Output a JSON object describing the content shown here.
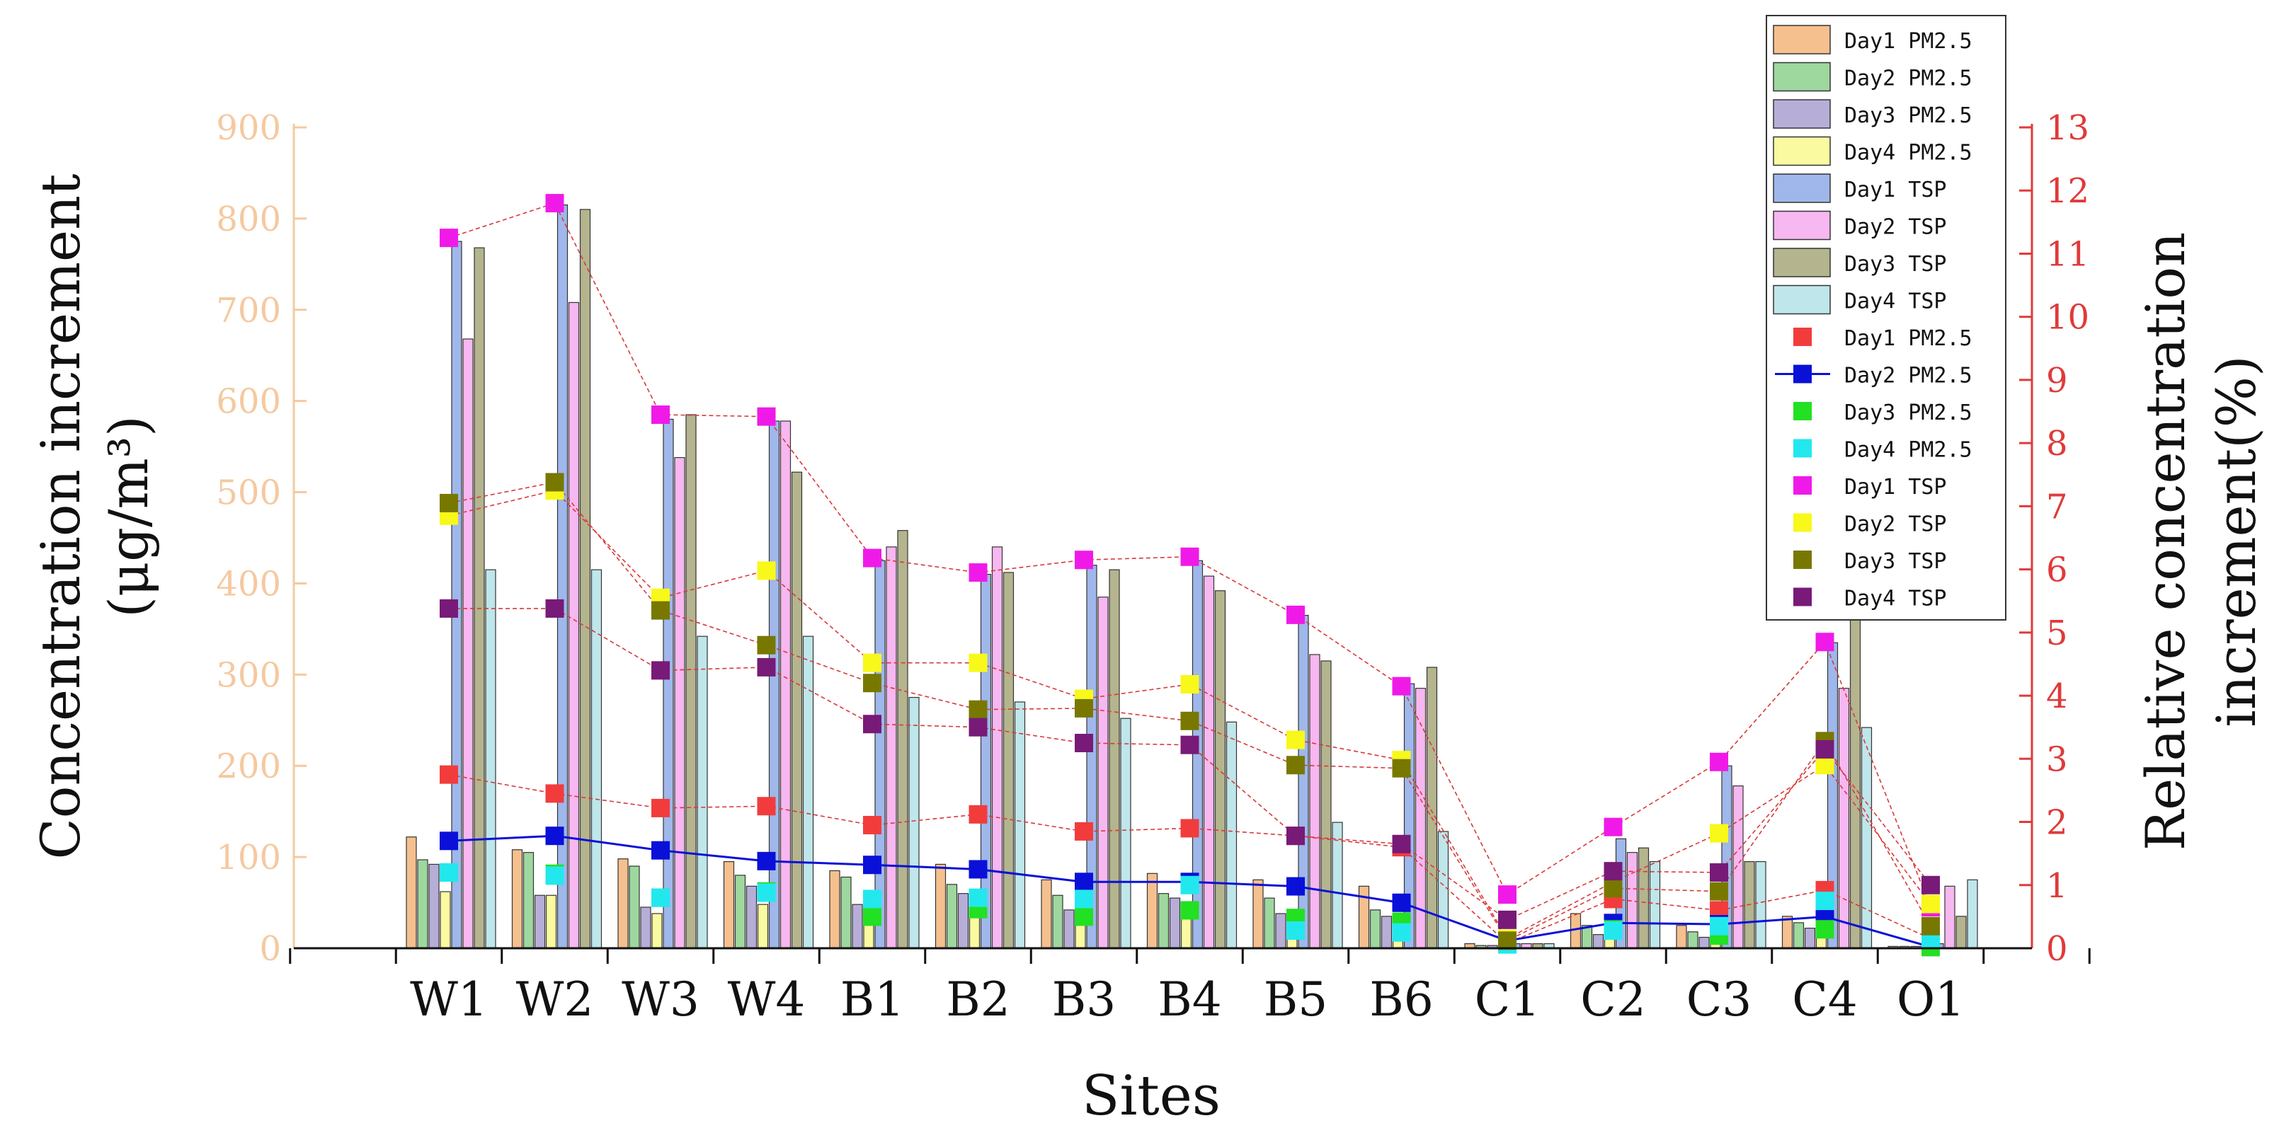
{
  "chart_data": {
    "type": "bar",
    "title": "",
    "xlabel": "Sites",
    "ylabel_left_line1": "Concentration increment",
    "ylabel_left_line2": "(μg/m³)",
    "ylabel_right_line1": "Relative concentration",
    "ylabel_right_line2": "increment(%)",
    "categories": [
      "W1",
      "W2",
      "W3",
      "W4",
      "B1",
      "B2",
      "B3",
      "B4",
      "B5",
      "B6",
      "C1",
      "C2",
      "C3",
      "C4",
      "O1"
    ],
    "ylim_left": [
      0,
      900
    ],
    "yticks_left": [
      0,
      100,
      200,
      300,
      400,
      500,
      600,
      700,
      800,
      900
    ],
    "ylim_right": [
      0,
      13
    ],
    "yticks_right": [
      0,
      1,
      2,
      3,
      4,
      5,
      6,
      7,
      8,
      9,
      10,
      11,
      12,
      13
    ],
    "legend_position": "top-right",
    "bar_series": [
      {
        "name": "Day1  PM2.5",
        "color": "#f5c08e",
        "values": [
          122,
          108,
          98,
          95,
          85,
          92,
          75,
          82,
          75,
          68,
          5,
          38,
          25,
          35,
          2
        ]
      },
      {
        "name": "Day2  PM2.5",
        "color": "#9ed89e",
        "values": [
          97,
          105,
          90,
          80,
          78,
          70,
          58,
          60,
          55,
          42,
          3,
          25,
          18,
          28,
          2
        ]
      },
      {
        "name": "Day3  PM2.5",
        "color": "#b7aed8",
        "values": [
          92,
          58,
          45,
          68,
          48,
          60,
          42,
          55,
          38,
          35,
          3,
          15,
          12,
          22,
          2
        ]
      },
      {
        "name": "Day4  PM2.5",
        "color": "#fafaa0",
        "values": [
          62,
          58,
          38,
          48,
          38,
          38,
          32,
          40,
          30,
          32,
          2,
          12,
          10,
          20,
          2
        ]
      },
      {
        "name": "Day1  TSP",
        "color": "#9fb7ea",
        "values": [
          775,
          815,
          580,
          578,
          425,
          410,
          420,
          425,
          365,
          290,
          5,
          120,
          200,
          335,
          5
        ]
      },
      {
        "name": "Day2  TSP",
        "color": "#f7b7f0",
        "values": [
          668,
          708,
          538,
          578,
          440,
          440,
          385,
          408,
          322,
          285,
          5,
          105,
          178,
          285,
          68
        ]
      },
      {
        "name": "Day3  TSP",
        "color": "#b4b48e",
        "values": [
          768,
          810,
          585,
          522,
          458,
          412,
          415,
          392,
          315,
          308,
          5,
          110,
          95,
          360,
          35
        ]
      },
      {
        "name": "Day4  TSP",
        "color": "#bfe6ea",
        "values": [
          415,
          415,
          342,
          342,
          275,
          270,
          252,
          248,
          138,
          128,
          5,
          95,
          95,
          242,
          75
        ]
      }
    ],
    "scatter_series": [
      {
        "name": "Day1  PM2.5",
        "color": "#f23c3c",
        "line": "dashed",
        "values": [
          2.75,
          2.45,
          2.22,
          2.25,
          1.95,
          2.12,
          1.85,
          1.9,
          1.78,
          1.6,
          0.08,
          0.78,
          0.6,
          0.92,
          0.15
        ]
      },
      {
        "name": "Day2  PM2.5",
        "color": "#0a10d8",
        "line": "solid",
        "values": [
          1.7,
          1.78,
          1.55,
          1.38,
          1.32,
          1.25,
          1.05,
          1.05,
          0.98,
          0.72,
          0.12,
          0.4,
          0.38,
          0.5,
          0.02
        ]
      },
      {
        "name": "Day3  PM2.5",
        "color": "#22e022",
        "line": "none",
        "values": [
          1.2,
          1.18,
          0.8,
          0.9,
          0.5,
          0.62,
          0.5,
          0.6,
          0.48,
          0.42,
          0.08,
          0.3,
          0.2,
          0.3,
          0.02
        ]
      },
      {
        "name": "Day4  PM2.5",
        "color": "#22e8ee",
        "line": "none",
        "values": [
          1.2,
          1.15,
          0.8,
          0.88,
          0.78,
          0.8,
          0.78,
          1.0,
          0.28,
          0.25,
          0.06,
          0.28,
          0.35,
          0.75,
          0.15
        ]
      },
      {
        "name": "Day1  TSP",
        "color": "#f01ae8",
        "line": "dashed",
        "values": [
          11.25,
          11.8,
          8.45,
          8.42,
          6.18,
          5.95,
          6.15,
          6.2,
          5.28,
          4.15,
          0.85,
          1.92,
          2.95,
          4.85,
          0.65
        ]
      },
      {
        "name": "Day2  TSP",
        "color": "#f8f81a",
        "line": "dashed",
        "values": [
          6.85,
          7.25,
          5.55,
          5.98,
          4.52,
          4.52,
          3.95,
          4.18,
          3.3,
          2.98,
          0.15,
          1.05,
          1.82,
          2.9,
          0.7
        ]
      },
      {
        "name": "Day3  TSP",
        "color": "#787800",
        "line": "dashed",
        "values": [
          7.05,
          7.38,
          5.35,
          4.8,
          4.2,
          3.78,
          3.8,
          3.6,
          2.9,
          2.85,
          0.12,
          0.95,
          0.9,
          3.28,
          0.35
        ]
      },
      {
        "name": "Day4  TSP",
        "color": "#781a78",
        "line": "dashed",
        "values": [
          5.38,
          5.38,
          4.4,
          4.45,
          3.55,
          3.5,
          3.25,
          3.22,
          1.78,
          1.65,
          0.45,
          1.22,
          1.2,
          3.15,
          1.0
        ]
      }
    ]
  }
}
